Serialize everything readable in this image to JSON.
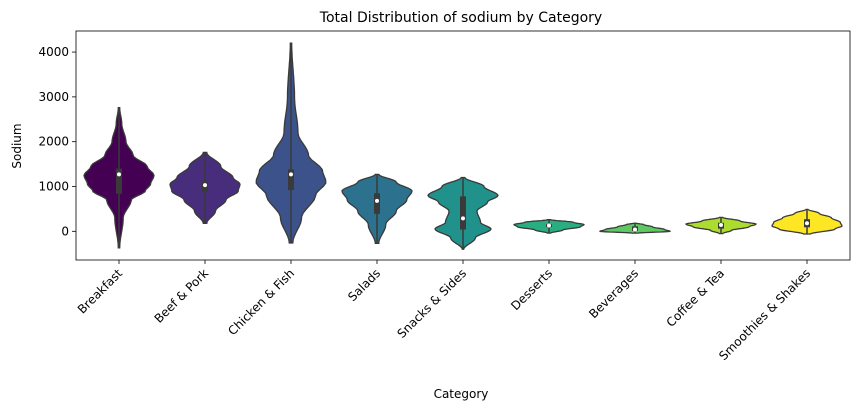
{
  "chart_data": {
    "type": "violin",
    "title": "Total Distribution of sodium by Category",
    "xlabel": "Category",
    "ylabel": "Sodium",
    "ylim": [
      -640,
      4470
    ],
    "yticks": [
      0,
      1000,
      2000,
      3000,
      4000
    ],
    "grid": false,
    "categories": [
      "Breakfast",
      "Beef & Pork",
      "Chicken & Fish",
      "Salads",
      "Snacks & Sides",
      "Desserts",
      "Beverages",
      "Coffee & Tea",
      "Smoothies & Shakes"
    ],
    "colors": [
      "#440154",
      "#472d7b",
      "#3b528b",
      "#2c728e",
      "#21918c",
      "#28ae80",
      "#5ec962",
      "#addc30",
      "#fde725"
    ],
    "series": [
      {
        "min": -370,
        "q1": 840,
        "median": 1270,
        "q3": 1400,
        "max": 2760,
        "profile": [
          [
            -370,
            0.02
          ],
          [
            300,
            0.12
          ],
          [
            700,
            0.35
          ],
          [
            900,
            0.75
          ],
          [
            1050,
            0.9
          ],
          [
            1250,
            1.0
          ],
          [
            1450,
            0.8
          ],
          [
            1700,
            0.4
          ],
          [
            2000,
            0.2
          ],
          [
            2400,
            0.08
          ],
          [
            2760,
            0.02
          ]
        ]
      },
      {
        "min": 180,
        "q1": 880,
        "median": 1030,
        "q3": 1110,
        "max": 1760,
        "profile": [
          [
            180,
            0.05
          ],
          [
            450,
            0.3
          ],
          [
            700,
            0.6
          ],
          [
            900,
            0.95
          ],
          [
            1050,
            1.0
          ],
          [
            1200,
            0.8
          ],
          [
            1450,
            0.45
          ],
          [
            1760,
            0.05
          ]
        ]
      },
      {
        "min": -260,
        "q1": 920,
        "median": 1270,
        "q3": 1380,
        "max": 4200,
        "profile": [
          [
            -260,
            0.05
          ],
          [
            300,
            0.3
          ],
          [
            800,
            0.7
          ],
          [
            1100,
            1.0
          ],
          [
            1350,
            0.9
          ],
          [
            1700,
            0.5
          ],
          [
            2200,
            0.2
          ],
          [
            3000,
            0.1
          ],
          [
            4200,
            0.02
          ]
        ]
      },
      {
        "min": -270,
        "q1": 390,
        "median": 680,
        "q3": 850,
        "max": 1270,
        "profile": [
          [
            -270,
            0.05
          ],
          [
            150,
            0.25
          ],
          [
            450,
            0.55
          ],
          [
            700,
            0.85
          ],
          [
            900,
            1.0
          ],
          [
            1100,
            0.55
          ],
          [
            1270,
            0.05
          ]
        ]
      },
      {
        "min": -400,
        "q1": 40,
        "median": 290,
        "q3": 780,
        "max": 1200,
        "profile": [
          [
            -400,
            0.02
          ],
          [
            -150,
            0.35
          ],
          [
            50,
            0.8
          ],
          [
            200,
            0.5
          ],
          [
            450,
            0.4
          ],
          [
            650,
            0.7
          ],
          [
            800,
            1.0
          ],
          [
            1000,
            0.6
          ],
          [
            1200,
            0.05
          ]
        ]
      },
      {
        "min": -40,
        "q1": 95,
        "median": 130,
        "q3": 160,
        "max": 260,
        "profile": [
          [
            -40,
            0.05
          ],
          [
            30,
            0.4
          ],
          [
            100,
            0.9
          ],
          [
            150,
            1.0
          ],
          [
            200,
            0.7
          ],
          [
            260,
            0.05
          ]
        ]
      },
      {
        "min": -40,
        "q1": 10,
        "median": 40,
        "q3": 110,
        "max": 180,
        "profile": [
          [
            -40,
            0.1
          ],
          [
            0,
            1.0
          ],
          [
            40,
            0.85
          ],
          [
            100,
            0.5
          ],
          [
            150,
            0.25
          ],
          [
            180,
            0.05
          ]
        ]
      },
      {
        "min": -50,
        "q1": 60,
        "median": 140,
        "q3": 190,
        "max": 310,
        "profile": [
          [
            -50,
            0.05
          ],
          [
            20,
            0.3
          ],
          [
            100,
            0.8
          ],
          [
            160,
            1.0
          ],
          [
            230,
            0.55
          ],
          [
            310,
            0.05
          ]
        ]
      },
      {
        "min": -60,
        "q1": 90,
        "median": 180,
        "q3": 270,
        "max": 490,
        "profile": [
          [
            -60,
            0.1
          ],
          [
            50,
            0.8
          ],
          [
            120,
            1.0
          ],
          [
            200,
            0.95
          ],
          [
            300,
            0.7
          ],
          [
            400,
            0.35
          ],
          [
            490,
            0.03
          ]
        ]
      }
    ]
  }
}
